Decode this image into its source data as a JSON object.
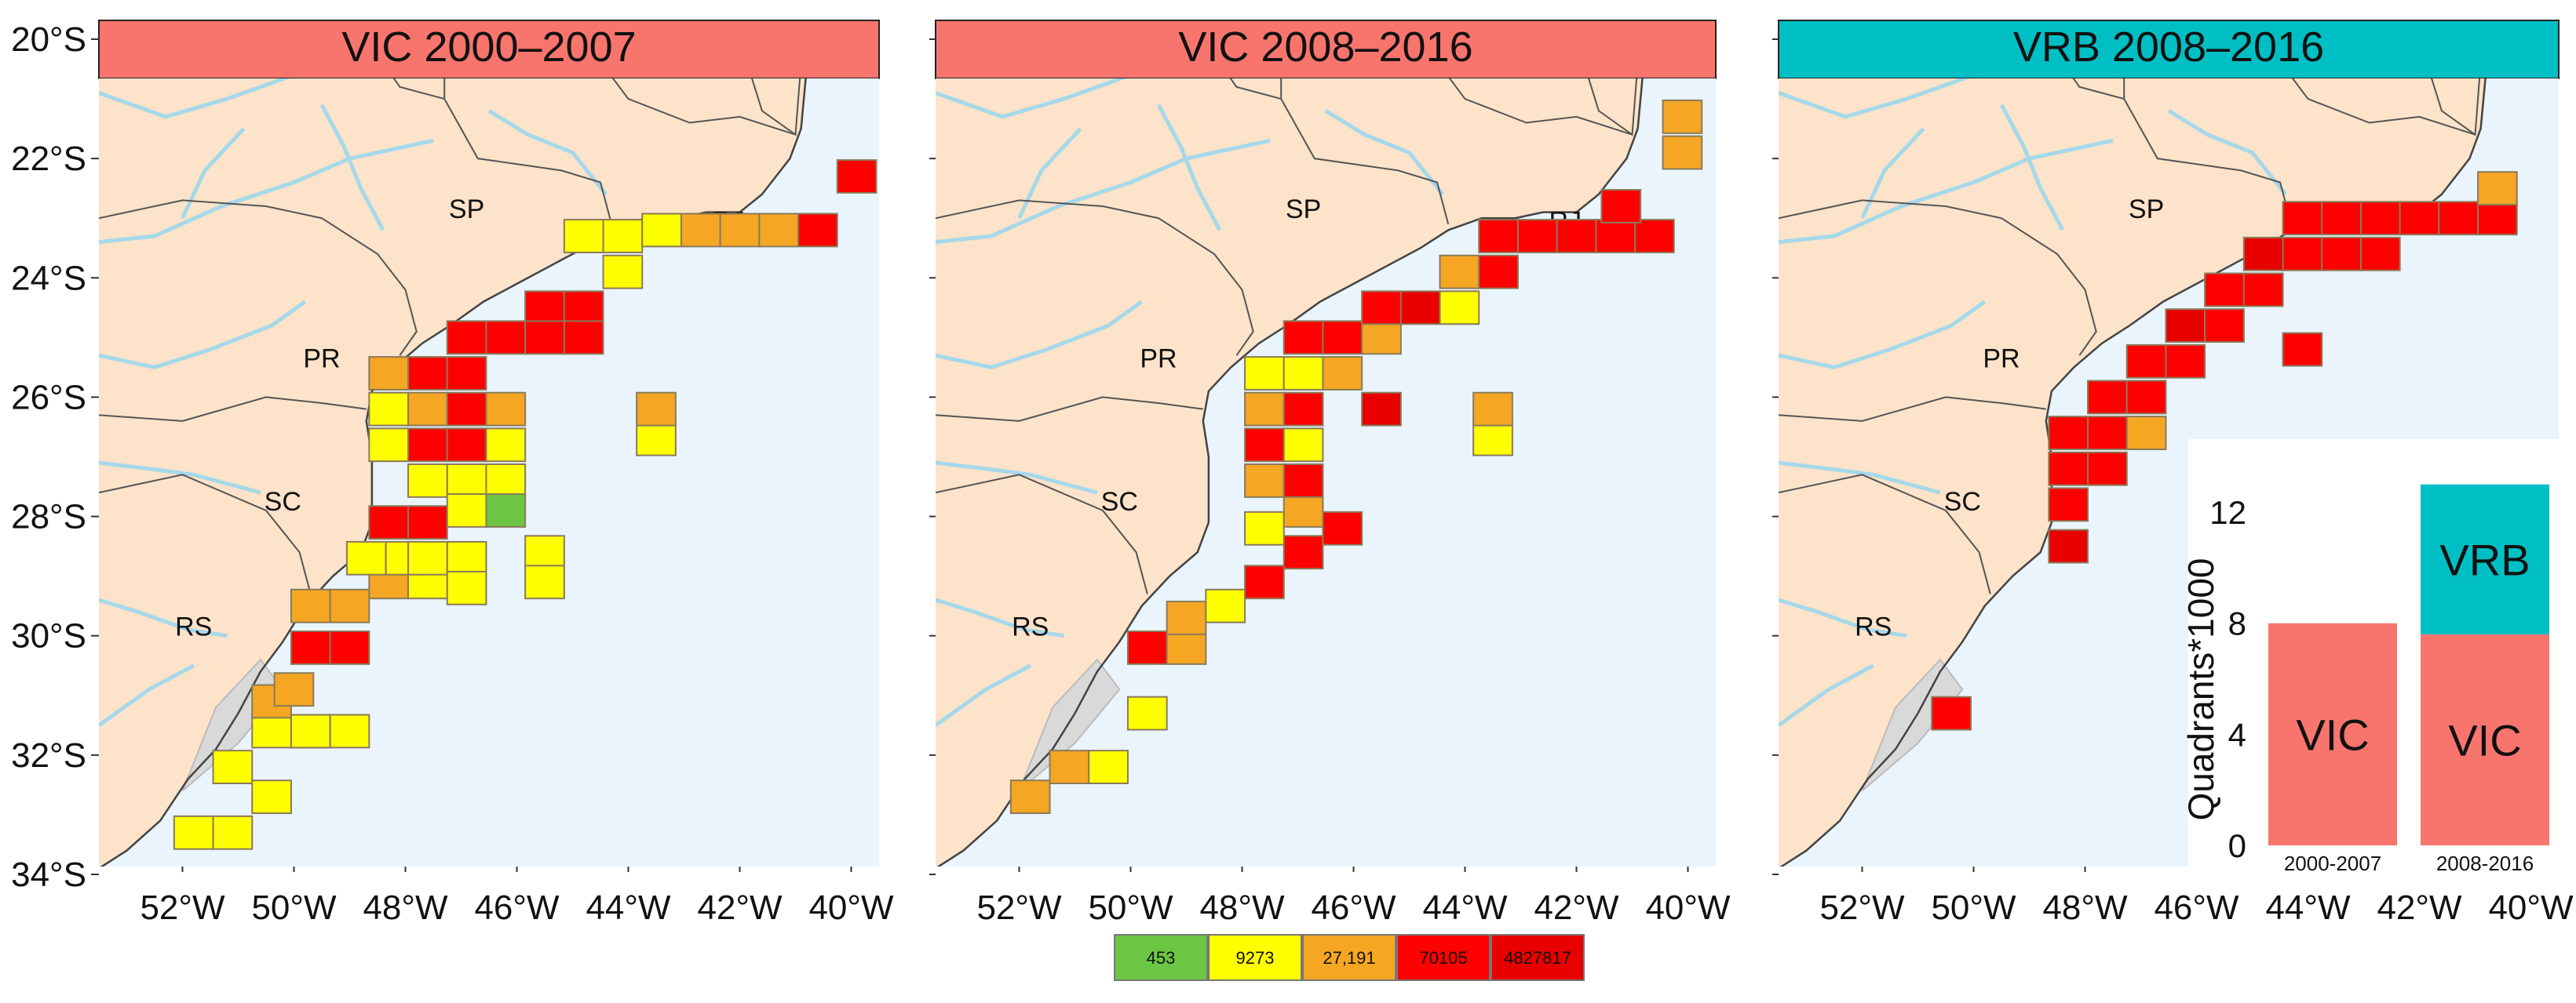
{
  "panels": [
    {
      "title": "VIC 2000–2007",
      "title_color": "#f8756d",
      "cells": [
        [
          51.8,
          33.3
        ],
        [
          51.1,
          33.3
        ],
        [
          51.1,
          32.2
        ],
        [
          50.4,
          32.7
        ],
        [
          50.4,
          31.6
        ],
        [
          50.4,
          31.1
        ],
        [
          49.7,
          31.6
        ],
        [
          49.7,
          31.6
        ],
        [
          49.0,
          31.6
        ],
        [
          50.0,
          30.9
        ],
        [
          49.7,
          30.2
        ],
        [
          49.0,
          30.2
        ],
        [
          49.7,
          29.5
        ],
        [
          49.0,
          29.5
        ],
        [
          48.3,
          29.1
        ],
        [
          47.6,
          29.1
        ],
        [
          48.7,
          28.7
        ],
        [
          48.0,
          28.7
        ],
        [
          47.6,
          28.7
        ],
        [
          46.9,
          28.7
        ],
        [
          47.6,
          28.1
        ],
        [
          48.3,
          28.1
        ],
        [
          47.6,
          27.4
        ],
        [
          47.6,
          26.8
        ],
        [
          47.6,
          26.2
        ],
        [
          48.3,
          26.8
        ],
        [
          48.3,
          26.2
        ],
        [
          48.3,
          25.6
        ],
        [
          47.6,
          25.6
        ],
        [
          46.9,
          27.4
        ],
        [
          46.9,
          27.9
        ],
        [
          46.9,
          26.8
        ],
        [
          46.9,
          26.2
        ],
        [
          46.9,
          25.6
        ],
        [
          46.2,
          27.4
        ],
        [
          46.2,
          27.9
        ],
        [
          46.2,
          26.8
        ],
        [
          46.2,
          26.2
        ],
        [
          46.9,
          25.0
        ],
        [
          46.2,
          25.0
        ],
        [
          45.5,
          24.5
        ],
        [
          44.8,
          24.5
        ],
        [
          44.8,
          25.0
        ],
        [
          45.5,
          25.0
        ],
        [
          44.1,
          23.9
        ],
        [
          44.1,
          23.3
        ],
        [
          44.8,
          23.3
        ],
        [
          43.4,
          23.2
        ],
        [
          42.7,
          23.2
        ],
        [
          42.0,
          23.2
        ],
        [
          41.3,
          23.2
        ],
        [
          40.6,
          23.2
        ],
        [
          39.9,
          22.3
        ],
        [
          45.5,
          28.6
        ],
        [
          45.5,
          29.1
        ],
        [
          43.5,
          26.7
        ],
        [
          43.5,
          26.2
        ],
        [
          46.9,
          29.2
        ]
      ],
      "cell_levels": [
        1,
        1,
        1,
        1,
        1,
        2,
        2,
        1,
        1,
        2,
        3,
        3,
        2,
        2,
        2,
        1,
        1,
        1,
        1,
        1,
        3,
        3,
        1,
        3,
        2,
        1,
        1,
        2,
        3,
        1,
        1,
        3,
        3,
        3,
        1,
        0,
        1,
        2,
        3,
        3,
        3,
        3,
        3,
        3,
        1,
        1,
        1,
        1,
        2,
        2,
        2,
        3,
        3,
        1,
        1,
        1,
        2,
        1
      ]
    },
    {
      "title": "VIC 2008–2016",
      "title_color": "#f8756d",
      "cells": [
        [
          51.8,
          32.7
        ],
        [
          51.1,
          32.2
        ],
        [
          50.4,
          32.2
        ],
        [
          49.7,
          31.3
        ],
        [
          49.7,
          30.2
        ],
        [
          49.0,
          30.2
        ],
        [
          49.0,
          29.7
        ],
        [
          48.3,
          29.5
        ],
        [
          47.6,
          29.1
        ],
        [
          46.9,
          28.6
        ],
        [
          46.2,
          28.2
        ],
        [
          47.6,
          28.2
        ],
        [
          46.9,
          27.9
        ],
        [
          47.6,
          27.4
        ],
        [
          46.9,
          27.4
        ],
        [
          47.6,
          26.8
        ],
        [
          46.9,
          26.8
        ],
        [
          47.6,
          26.2
        ],
        [
          46.9,
          26.2
        ],
        [
          47.6,
          25.6
        ],
        [
          46.9,
          25.6
        ],
        [
          46.2,
          25.6
        ],
        [
          45.5,
          26.2
        ],
        [
          46.9,
          25.0
        ],
        [
          46.2,
          25.0
        ],
        [
          45.5,
          25.0
        ],
        [
          45.5,
          24.5
        ],
        [
          44.8,
          24.5
        ],
        [
          44.1,
          24.5
        ],
        [
          44.1,
          23.9
        ],
        [
          43.4,
          23.9
        ],
        [
          43.4,
          23.3
        ],
        [
          42.7,
          23.3
        ],
        [
          42.0,
          23.3
        ],
        [
          41.3,
          23.3
        ],
        [
          40.6,
          23.3
        ],
        [
          43.5,
          26.7
        ],
        [
          43.5,
          26.2
        ],
        [
          40.1,
          21.9
        ],
        [
          40.1,
          21.3
        ],
        [
          41.2,
          22.8
        ]
      ],
      "cell_levels": [
        2,
        2,
        1,
        1,
        3,
        2,
        2,
        1,
        3,
        3,
        3,
        1,
        2,
        2,
        3,
        3,
        1,
        2,
        3,
        1,
        1,
        2,
        4,
        3,
        3,
        2,
        3,
        4,
        1,
        2,
        3,
        3,
        3,
        3,
        3,
        3,
        1,
        2,
        2,
        2,
        3
      ]
    },
    {
      "title": "VRB 2008–2016",
      "title_color": "#00bfc4",
      "cells": [
        [
          50.4,
          31.3
        ],
        [
          48.3,
          28.5
        ],
        [
          48.3,
          27.8
        ],
        [
          48.3,
          27.2
        ],
        [
          48.3,
          26.6
        ],
        [
          47.6,
          27.2
        ],
        [
          47.6,
          26.6
        ],
        [
          47.6,
          26.0
        ],
        [
          46.9,
          26.6
        ],
        [
          46.9,
          26.0
        ],
        [
          46.9,
          25.4
        ],
        [
          46.2,
          25.4
        ],
        [
          46.2,
          24.8
        ],
        [
          45.5,
          24.8
        ],
        [
          45.5,
          24.2
        ],
        [
          44.8,
          24.2
        ],
        [
          44.8,
          23.6
        ],
        [
          44.1,
          23.6
        ],
        [
          44.1,
          23.0
        ],
        [
          43.4,
          23.6
        ],
        [
          43.4,
          23.0
        ],
        [
          42.7,
          23.6
        ],
        [
          42.7,
          23.0
        ],
        [
          42.0,
          23.0
        ],
        [
          41.3,
          23.0
        ],
        [
          40.6,
          23.0
        ],
        [
          40.6,
          22.5
        ],
        [
          44.1,
          25.2
        ]
      ],
      "cell_levels": [
        3,
        4,
        3,
        3,
        3,
        3,
        3,
        3,
        2,
        3,
        3,
        3,
        4,
        3,
        3,
        3,
        4,
        3,
        3,
        3,
        3,
        3,
        3,
        3,
        3,
        3,
        2,
        3
      ]
    }
  ],
  "map": {
    "lon_range": [
      -53.5,
      -39.5
    ],
    "lat_range": [
      -34,
      -20
    ],
    "x_ticks": [
      "52°W",
      "50°W",
      "48°W",
      "46°W",
      "44°W",
      "42°W",
      "40°W"
    ],
    "y_ticks": [
      "20°S",
      "22°S",
      "24°S",
      "26°S",
      "28°S",
      "30°S",
      "32°S",
      "34°S"
    ],
    "states": [
      "SP",
      "PR",
      "SC",
      "RS",
      "RJ"
    ],
    "land_color": "#fce3c9",
    "ocean_color": "#eaf4fc",
    "river_color": "#a5d8ea"
  },
  "legend": {
    "items": [
      {
        "label": "453",
        "color": "#6cc644"
      },
      {
        "label": "9273",
        "color": "#ffff00"
      },
      {
        "label": "27,191",
        "color": "#f5a623"
      },
      {
        "label": "70105",
        "color": "#ff0000"
      },
      {
        "label": "4827817",
        "color": "#e80000"
      }
    ]
  },
  "chart_data": {
    "type": "bar",
    "ylabel": "Quadrants*1000",
    "categories": [
      "2000-2007",
      "2008-2016"
    ],
    "y_ticks": [
      "0",
      "4",
      "8",
      "12"
    ],
    "ylim": [
      0,
      13.5
    ],
    "series": [
      {
        "name": "VIC",
        "values": [
          8.0,
          7.6
        ],
        "color": "#f8756d"
      },
      {
        "name": "VRB",
        "values": [
          0,
          5.4
        ],
        "color": "#00bfc4"
      }
    ]
  }
}
